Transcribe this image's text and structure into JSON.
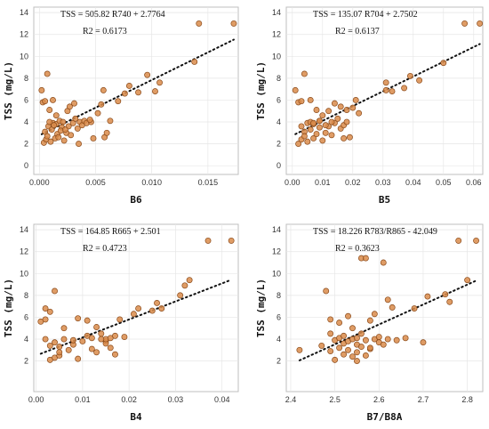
{
  "chart_data": [
    {
      "type": "scatter",
      "xlabel": "B6",
      "ylabel": "TSS  (mg/L)",
      "xlim": [
        -0.0005,
        0.0177
      ],
      "ylim": [
        -0.8,
        14.5
      ],
      "xticks": [
        "0.000",
        "0.005",
        "0.010",
        "0.015"
      ],
      "xtick_values": [
        0,
        0.005,
        0.01,
        0.015
      ],
      "yticks": [
        "0",
        "2",
        "4",
        "6",
        "8",
        "10",
        "12",
        "14"
      ],
      "ytick_values": [
        0,
        2,
        4,
        6,
        8,
        10,
        12,
        14
      ],
      "grid": true,
      "equation": "TSS = 505.82 R740 + 2.7764",
      "r2": "R2 = 0.6173",
      "trendline": {
        "slope": 505.82,
        "intercept": 2.7764
      },
      "points": [
        [
          0.0004,
          2.1
        ],
        [
          0.0006,
          2.4
        ],
        [
          0.0008,
          3.6
        ],
        [
          0.0005,
          3.1
        ],
        [
          0.0007,
          2.7
        ],
        [
          0.001,
          2.2
        ],
        [
          0.0012,
          3.9
        ],
        [
          0.0009,
          4.0
        ],
        [
          0.0011,
          3.3
        ],
        [
          0.0014,
          2.5
        ],
        [
          0.0015,
          3.8
        ],
        [
          0.0016,
          2.9
        ],
        [
          0.0018,
          4.1
        ],
        [
          0.002,
          3.5
        ],
        [
          0.0022,
          2.3
        ],
        [
          0.0024,
          3.0
        ],
        [
          0.0026,
          3.6
        ],
        [
          0.0028,
          2.8
        ],
        [
          0.003,
          3.9
        ],
        [
          0.0032,
          4.3
        ],
        [
          0.0034,
          3.4
        ],
        [
          0.0013,
          3.7
        ],
        [
          0.0017,
          2.6
        ],
        [
          0.0019,
          3.2
        ],
        [
          0.0021,
          4.0
        ],
        [
          0.0023,
          3.3
        ],
        [
          0.0003,
          5.8
        ],
        [
          0.0005,
          5.9
        ],
        [
          0.0007,
          8.4
        ],
        [
          0.0012,
          6.0
        ],
        [
          0.0002,
          6.9
        ],
        [
          0.0009,
          5.1
        ],
        [
          0.0015,
          4.6
        ],
        [
          0.0025,
          5.0
        ],
        [
          0.0031,
          5.7
        ],
        [
          0.0027,
          5.4
        ],
        [
          0.0036,
          4.0
        ],
        [
          0.0038,
          3.7
        ],
        [
          0.004,
          4.1
        ],
        [
          0.0042,
          3.9
        ],
        [
          0.0046,
          4.0
        ],
        [
          0.0048,
          2.5
        ],
        [
          0.0035,
          2.0
        ],
        [
          0.0045,
          4.2
        ],
        [
          0.0052,
          4.8
        ],
        [
          0.0055,
          5.6
        ],
        [
          0.0058,
          2.6
        ],
        [
          0.006,
          3.0
        ],
        [
          0.0057,
          6.9
        ],
        [
          0.0063,
          4.1
        ],
        [
          0.007,
          5.9
        ],
        [
          0.0076,
          6.6
        ],
        [
          0.008,
          7.3
        ],
        [
          0.0088,
          6.7
        ],
        [
          0.0096,
          8.3
        ],
        [
          0.0103,
          6.8
        ],
        [
          0.0107,
          7.6
        ],
        [
          0.0138,
          9.5
        ],
        [
          0.0142,
          13.0
        ],
        [
          0.0173,
          13.0
        ]
      ]
    },
    {
      "type": "scatter",
      "xlabel": "B5",
      "ylabel": "TSS  (mg/L)",
      "xlim": [
        -0.002,
        0.063
      ],
      "ylim": [
        -0.8,
        14.5
      ],
      "xticks": [
        "0.00",
        "0.01",
        "0.02",
        "0.03",
        "0.04",
        "0.05",
        "0.06"
      ],
      "xtick_values": [
        0,
        0.01,
        0.02,
        0.03,
        0.04,
        0.05,
        0.06
      ],
      "yticks": [
        "0",
        "2",
        "4",
        "6",
        "8",
        "10",
        "12",
        "14"
      ],
      "ytick_values": [
        0,
        2,
        4,
        6,
        8,
        10,
        12,
        14
      ],
      "grid": true,
      "equation": "TSS = 135.07 R704 + 2.7502",
      "r2": "R2 = 0.6137",
      "trendline": {
        "slope": 135.07,
        "intercept": 2.7502
      },
      "points": [
        [
          0.002,
          2.0
        ],
        [
          0.003,
          2.4
        ],
        [
          0.003,
          3.6
        ],
        [
          0.004,
          3.1
        ],
        [
          0.004,
          2.7
        ],
        [
          0.005,
          2.2
        ],
        [
          0.005,
          3.9
        ],
        [
          0.006,
          4.0
        ],
        [
          0.006,
          3.3
        ],
        [
          0.007,
          2.5
        ],
        [
          0.007,
          3.8
        ],
        [
          0.008,
          2.9
        ],
        [
          0.009,
          4.1
        ],
        [
          0.009,
          3.5
        ],
        [
          0.01,
          2.3
        ],
        [
          0.011,
          3.0
        ],
        [
          0.012,
          3.6
        ],
        [
          0.013,
          2.8
        ],
        [
          0.014,
          3.9
        ],
        [
          0.015,
          4.3
        ],
        [
          0.016,
          3.4
        ],
        [
          0.017,
          3.7
        ],
        [
          0.018,
          4.0
        ],
        [
          0.002,
          5.8
        ],
        [
          0.003,
          5.9
        ],
        [
          0.004,
          8.4
        ],
        [
          0.006,
          6.0
        ],
        [
          0.001,
          6.9
        ],
        [
          0.008,
          5.1
        ],
        [
          0.01,
          4.6
        ],
        [
          0.012,
          5.0
        ],
        [
          0.014,
          5.7
        ],
        [
          0.016,
          5.4
        ],
        [
          0.013,
          4.0
        ],
        [
          0.011,
          3.7
        ],
        [
          0.009,
          4.1
        ],
        [
          0.007,
          3.9
        ],
        [
          0.018,
          5.1
        ],
        [
          0.02,
          5.3
        ],
        [
          0.017,
          2.5
        ],
        [
          0.019,
          2.6
        ],
        [
          0.021,
          6.0
        ],
        [
          0.022,
          4.8
        ],
        [
          0.031,
          6.9
        ],
        [
          0.033,
          6.8
        ],
        [
          0.037,
          7.1
        ],
        [
          0.039,
          8.2
        ],
        [
          0.042,
          7.8
        ],
        [
          0.05,
          9.4
        ],
        [
          0.031,
          7.6
        ],
        [
          0.057,
          13.0
        ],
        [
          0.062,
          13.0
        ]
      ]
    },
    {
      "type": "scatter",
      "xlabel": "B4",
      "ylabel": "TSS  (mg/L)",
      "xlim": [
        -0.0005,
        0.0435
      ],
      "ylim": [
        -0.8,
        14.5
      ],
      "xticks": [
        "0.00",
        "0.01",
        "0.02",
        "0.03",
        "0.04"
      ],
      "xtick_values": [
        0,
        0.01,
        0.02,
        0.03,
        0.04
      ],
      "yticks": [
        "2",
        "4",
        "6",
        "8",
        "10",
        "12",
        "14"
      ],
      "ytick_values": [
        2,
        4,
        6,
        8,
        10,
        12,
        14
      ],
      "grid": true,
      "equation": "TSS = 164.85 R665 + 2.501",
      "r2": "R2 = 0.4723",
      "trendline": {
        "slope": 164.85,
        "intercept": 2.501
      },
      "points": [
        [
          0.001,
          5.6
        ],
        [
          0.002,
          5.8
        ],
        [
          0.002,
          4.0
        ],
        [
          0.003,
          3.4
        ],
        [
          0.003,
          2.1
        ],
        [
          0.004,
          2.3
        ],
        [
          0.004,
          3.7
        ],
        [
          0.005,
          2.5
        ],
        [
          0.005,
          3.3
        ],
        [
          0.006,
          4.0
        ],
        [
          0.004,
          8.4
        ],
        [
          0.003,
          6.5
        ],
        [
          0.002,
          6.8
        ],
        [
          0.006,
          5.0
        ],
        [
          0.007,
          3.0
        ],
        [
          0.008,
          3.5
        ],
        [
          0.009,
          2.2
        ],
        [
          0.01,
          3.8
        ],
        [
          0.011,
          4.3
        ],
        [
          0.009,
          5.9
        ],
        [
          0.011,
          5.7
        ],
        [
          0.012,
          3.1
        ],
        [
          0.013,
          2.8
        ],
        [
          0.014,
          4.5
        ],
        [
          0.015,
          3.8
        ],
        [
          0.015,
          3.6
        ],
        [
          0.015,
          4.0
        ],
        [
          0.016,
          3.2
        ],
        [
          0.016,
          4.1
        ],
        [
          0.017,
          2.6
        ],
        [
          0.013,
          5.1
        ],
        [
          0.014,
          4.0
        ],
        [
          0.018,
          5.8
        ],
        [
          0.019,
          4.2
        ],
        [
          0.021,
          6.3
        ],
        [
          0.022,
          6.8
        ],
        [
          0.025,
          6.6
        ],
        [
          0.026,
          7.3
        ],
        [
          0.027,
          6.8
        ],
        [
          0.031,
          8.0
        ],
        [
          0.032,
          8.9
        ],
        [
          0.033,
          9.4
        ],
        [
          0.037,
          13.0
        ],
        [
          0.042,
          13.0
        ],
        [
          0.012,
          4.1
        ],
        [
          0.008,
          3.9
        ],
        [
          0.017,
          4.3
        ],
        [
          0.005,
          2.8
        ]
      ]
    },
    {
      "type": "scatter",
      "xlabel": "B7/B8A",
      "ylabel": "TSS  (mg/L)",
      "xlim": [
        2.39,
        2.835
      ],
      "ylim": [
        -0.8,
        14.5
      ],
      "xticks": [
        "2.4",
        "2.5",
        "2.6",
        "2.7",
        "2.8"
      ],
      "xtick_values": [
        2.4,
        2.5,
        2.6,
        2.7,
        2.8
      ],
      "yticks": [
        "2",
        "4",
        "6",
        "8",
        "10",
        "12",
        "14"
      ],
      "ytick_values": [
        2,
        4,
        6,
        8,
        10,
        12,
        14
      ],
      "grid": true,
      "equation": "TSS = 18.226 R783/R865 - 42.049",
      "r2": "R2 = 0.3623",
      "trendline": {
        "slope": 18.226,
        "intercept": -42.049
      },
      "points": [
        [
          2.42,
          3.0
        ],
        [
          2.47,
          3.4
        ],
        [
          2.48,
          8.4
        ],
        [
          2.49,
          5.8
        ],
        [
          2.49,
          2.9
        ],
        [
          2.5,
          2.1
        ],
        [
          2.5,
          3.9
        ],
        [
          2.51,
          3.2
        ],
        [
          2.51,
          4.1
        ],
        [
          2.52,
          2.6
        ],
        [
          2.52,
          3.6
        ],
        [
          2.52,
          4.3
        ],
        [
          2.53,
          3.0
        ],
        [
          2.53,
          3.8
        ],
        [
          2.54,
          4.0
        ],
        [
          2.54,
          2.4
        ],
        [
          2.54,
          5.0
        ],
        [
          2.55,
          3.5
        ],
        [
          2.55,
          4.1
        ],
        [
          2.55,
          2.8
        ],
        [
          2.56,
          3.3
        ],
        [
          2.56,
          4.5
        ],
        [
          2.56,
          11.4
        ],
        [
          2.57,
          11.4
        ],
        [
          2.57,
          3.9
        ],
        [
          2.57,
          2.5
        ],
        [
          2.58,
          5.7
        ],
        [
          2.58,
          3.1
        ],
        [
          2.59,
          4.0
        ],
        [
          2.59,
          6.3
        ],
        [
          2.6,
          3.7
        ],
        [
          2.6,
          4.2
        ],
        [
          2.61,
          11.0
        ],
        [
          2.61,
          3.5
        ],
        [
          2.62,
          7.6
        ],
        [
          2.62,
          4.0
        ],
        [
          2.63,
          6.9
        ],
        [
          2.64,
          3.9
        ],
        [
          2.66,
          4.1
        ],
        [
          2.68,
          6.8
        ],
        [
          2.7,
          3.7
        ],
        [
          2.71,
          7.9
        ],
        [
          2.75,
          8.1
        ],
        [
          2.76,
          7.4
        ],
        [
          2.78,
          13.0
        ],
        [
          2.8,
          9.4
        ],
        [
          2.82,
          13.0
        ],
        [
          2.51,
          5.5
        ],
        [
          2.53,
          6.1
        ],
        [
          2.49,
          4.5
        ],
        [
          2.55,
          2.0
        ],
        [
          2.58,
          3.2
        ]
      ]
    }
  ]
}
